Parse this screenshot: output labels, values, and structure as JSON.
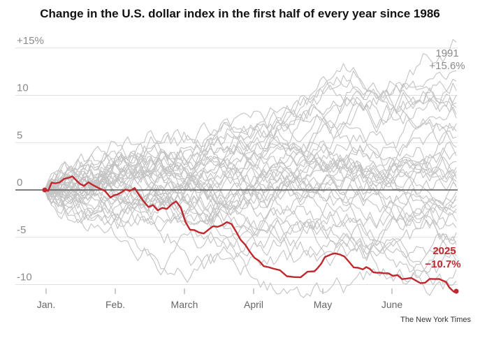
{
  "chart_data": {
    "type": "line",
    "title": "Change in the U.S. dollar index in the first half of every year since 1986",
    "credit": "The New York Times",
    "x_tick_labels": [
      "Jan.",
      "Feb.",
      "March",
      "April",
      "May",
      "June"
    ],
    "y_tick_labels": [
      "+15%",
      "10",
      "5",
      "0",
      "-5",
      "-10"
    ],
    "y_ticks": [
      15,
      10,
      5,
      0,
      -5,
      -10
    ],
    "ylim": [
      -11,
      16
    ],
    "xlim": [
      0,
      6
    ],
    "grid": true,
    "legend": "none",
    "colors": {
      "highlight": "#c0282d",
      "others": "#c4c4c4",
      "zero_line": "#555555",
      "grid": "#e0e0e0"
    },
    "annotations": {
      "y1991": {
        "year": "1991",
        "value": "+15.6%"
      },
      "y2025": {
        "year": "2025",
        "value": "−10.7%"
      }
    },
    "highlight_series": {
      "year": "2025",
      "x": [
        0,
        0.15,
        0.35,
        0.5,
        0.7,
        0.95,
        1.1,
        1.3,
        1.5,
        1.7,
        1.9,
        2.1,
        2.3,
        2.5,
        2.7,
        2.9,
        3.1,
        3.3,
        3.6,
        3.9,
        4.05,
        4.2,
        4.4,
        4.6,
        4.75,
        4.9,
        5.1,
        5.3,
        5.5,
        5.7,
        5.85,
        5.95
      ],
      "values": [
        0,
        0.7,
        1.3,
        0.7,
        0.5,
        -0.8,
        -0.3,
        0.2,
        -1.8,
        -1.9,
        -1.2,
        -4.2,
        -4.6,
        -3.9,
        -3.6,
        -5.8,
        -7.5,
        -8.3,
        -9.2,
        -8.6,
        -7.1,
        -6.7,
        -7.6,
        -8.4,
        -8.7,
        -8.8,
        -9.0,
        -9.3,
        -9.8,
        -9.4,
        -10.3,
        -10.7
      ]
    },
    "series": [
      {
        "end": 15.6
      },
      {
        "end": 10.5
      },
      {
        "end": 10.0
      },
      {
        "end": 9.2
      },
      {
        "end": 8.7
      },
      {
        "end": 7.6
      },
      {
        "end": 7.0
      },
      {
        "end": 5.6
      },
      {
        "end": 4.5
      },
      {
        "end": 3.6
      },
      {
        "end": 2.4
      },
      {
        "end": 1.6
      },
      {
        "end": 0.9
      },
      {
        "end": 0.3
      },
      {
        "end": -0.6
      },
      {
        "end": -1.6
      },
      {
        "end": -2.4
      },
      {
        "end": -3.3
      },
      {
        "end": -4.5
      },
      {
        "end": -5.4
      },
      {
        "end": -6.6
      },
      {
        "end": -7.5
      },
      {
        "end": -8.4
      },
      {
        "end": -9.6
      },
      {
        "end": 12.6
      },
      {
        "end": 6.2
      },
      {
        "end": 1.2
      },
      {
        "end": -2.0
      },
      {
        "end": 3.0
      },
      {
        "end": -4.0
      },
      {
        "end": 8.0
      },
      {
        "end": -0.2
      },
      {
        "end": 4.0
      },
      {
        "end": 11.5
      },
      {
        "end": -5.8
      },
      {
        "end": 2.0
      },
      {
        "end": -1.0
      },
      {
        "end": 0.5
      },
      {
        "end": -7.0
      }
    ]
  }
}
